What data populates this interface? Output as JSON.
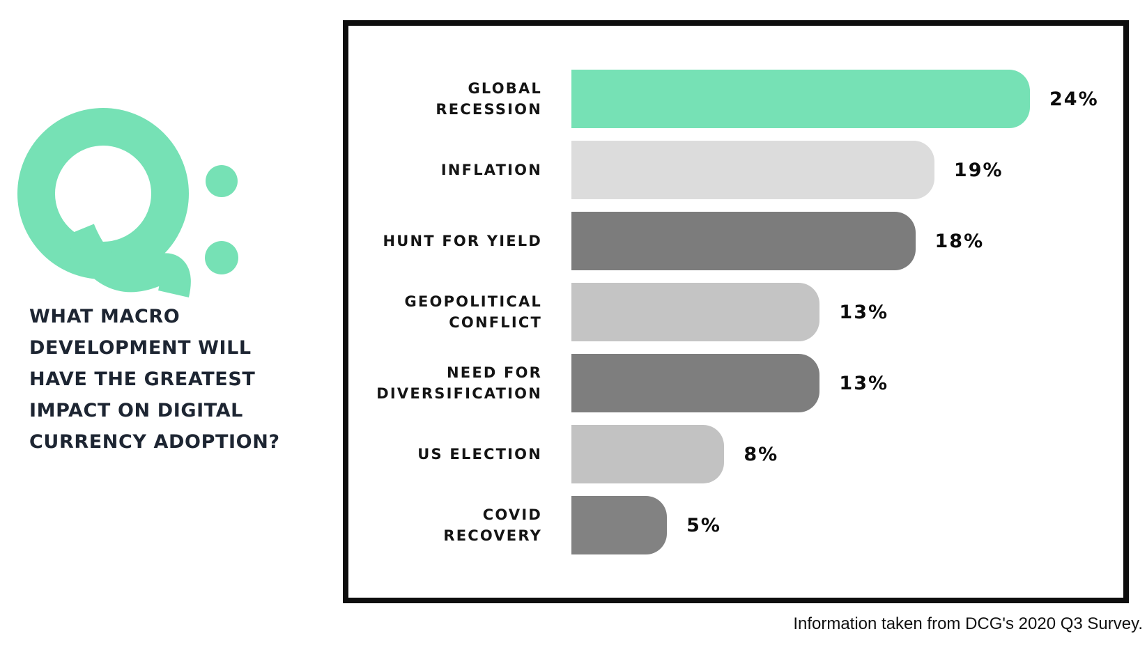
{
  "theme": {
    "accent": "#76e1b5",
    "ink": "#1d2532",
    "label_color": "#141414",
    "border_color": "#0e0e0e",
    "background": "#ffffff"
  },
  "left_panel": {
    "q_mark": "Q:",
    "question": "WHAT MACRO\nDEVELOPMENT WILL\nHAVE THE GREATEST\nIMPACT ON DIGITAL\nCURRENCY ADOPTION?"
  },
  "chart_data": {
    "type": "bar",
    "orientation": "horizontal",
    "title": "What macro development will have the greatest impact on digital currency adoption?",
    "categories": [
      "GLOBAL RECESSION",
      "INFLATION",
      "HUNT FOR YIELD",
      "GEOPOLITICAL CONFLICT",
      "NEED FOR DIVERSIFICATION",
      "US ELECTION",
      "COVID RECOVERY"
    ],
    "values": [
      24,
      19,
      18,
      13,
      13,
      8,
      5
    ],
    "value_labels": [
      "24%",
      "19%",
      "18%",
      "13%",
      "13%",
      "8%",
      "5%"
    ],
    "xlim": [
      0,
      24
    ],
    "grid": false,
    "legend": false,
    "bar_corner": "rounded-right",
    "rows": [
      {
        "label": "GLOBAL\nRECESSION",
        "value": 24,
        "pct": "24%",
        "color": "#76e1b5"
      },
      {
        "label": "INFLATION",
        "value": 19,
        "pct": "19%",
        "color": "#dcdcdc"
      },
      {
        "label": "HUNT FOR YIELD",
        "value": 18,
        "pct": "18%",
        "color": "#7c7c7c"
      },
      {
        "label": "GEOPOLITICAL\nCONFLICT",
        "value": 13,
        "pct": "13%",
        "color": "#c4c4c4"
      },
      {
        "label": "NEED FOR\nDIVERSIFICATION",
        "value": 13,
        "pct": "13%",
        "color": "#7e7e7e"
      },
      {
        "label": "US ELECTION",
        "value": 8,
        "pct": "8%",
        "color": "#c2c2c2"
      },
      {
        "label": "COVID\nRECOVERY",
        "value": 5,
        "pct": "5%",
        "color": "#828282"
      }
    ]
  },
  "footer": {
    "source": "Information taken from DCG's 2020 Q3 Survey."
  }
}
